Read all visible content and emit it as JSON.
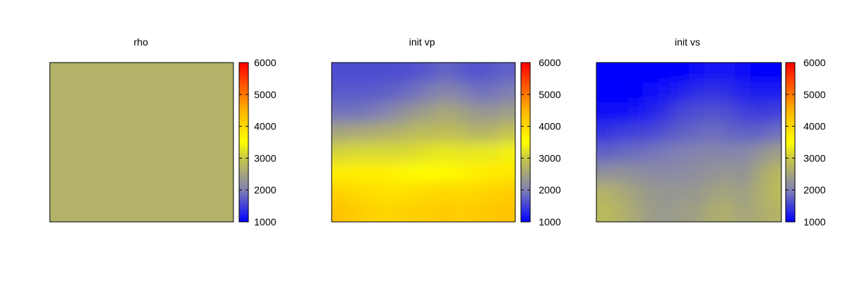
{
  "chart_data": [
    {
      "type": "heatmap",
      "title": "rho",
      "colorbar": {
        "ticks": [
          "6000",
          "5000",
          "4000",
          "3000",
          "2000",
          "1000"
        ],
        "range": [
          1000,
          6000
        ]
      },
      "field": {
        "rows": 8,
        "cols": 12,
        "values": [
          [
            2700,
            2700,
            2700,
            2700,
            2700,
            2700,
            2700,
            2700,
            2700,
            2700,
            2700,
            2700
          ],
          [
            2700,
            2700,
            2700,
            2700,
            2700,
            2700,
            2700,
            2700,
            2700,
            2700,
            2700,
            2700
          ],
          [
            2700,
            2700,
            2700,
            2700,
            2700,
            2700,
            2700,
            2700,
            2700,
            2700,
            2700,
            2700
          ],
          [
            2700,
            2700,
            2700,
            2700,
            2700,
            2700,
            2700,
            2700,
            2700,
            2700,
            2700,
            2700
          ],
          [
            2700,
            2700,
            2700,
            2700,
            2700,
            2700,
            2700,
            2700,
            2700,
            2700,
            2700,
            2700
          ],
          [
            2700,
            2700,
            2700,
            2700,
            2700,
            2700,
            2700,
            2700,
            2700,
            2700,
            2700,
            2700
          ],
          [
            2700,
            2700,
            2700,
            2700,
            2700,
            2700,
            2700,
            2700,
            2700,
            2700,
            2700,
            2700
          ],
          [
            2700,
            2700,
            2700,
            2700,
            2700,
            2700,
            2700,
            2700,
            2700,
            2700,
            2700,
            2700
          ]
        ]
      }
    },
    {
      "type": "heatmap",
      "title": "init vp",
      "colorbar": {
        "ticks": [
          "6000",
          "5000",
          "4000",
          "3000",
          "2000",
          "1000"
        ],
        "range": [
          1000,
          6000
        ]
      },
      "field": {
        "rows": 8,
        "cols": 12,
        "values": [
          [
            1600,
            1600,
            1600,
            1600,
            1620,
            1650,
            1700,
            1800,
            1700,
            1650,
            1700,
            1750
          ],
          [
            1700,
            1700,
            1700,
            1750,
            1800,
            1900,
            2000,
            2100,
            2000,
            1900,
            1900,
            2000
          ],
          [
            1900,
            1900,
            1950,
            2050,
            2200,
            2350,
            2450,
            2550,
            2450,
            2350,
            2300,
            2400
          ],
          [
            2500,
            2550,
            2600,
            2650,
            2700,
            2800,
            2800,
            2850,
            2800,
            2700,
            2750,
            2900
          ],
          [
            3100,
            3150,
            3150,
            3150,
            3150,
            3200,
            3250,
            3300,
            3250,
            3300,
            3300,
            3400
          ],
          [
            3700,
            3700,
            3700,
            3700,
            3600,
            3550,
            3550,
            3550,
            3600,
            3700,
            3750,
            3800
          ],
          [
            4100,
            4000,
            3950,
            3900,
            3900,
            3950,
            4000,
            4050,
            4000,
            4050,
            4100,
            4150
          ],
          [
            4300,
            4200,
            4100,
            4050,
            4100,
            4150,
            4150,
            4200,
            4150,
            4200,
            4250,
            4300
          ]
        ]
      }
    },
    {
      "type": "heatmap",
      "title": "init vs",
      "colorbar": {
        "ticks": [
          "6000",
          "5000",
          "4000",
          "3000",
          "2000",
          "1000"
        ],
        "range": [
          1000,
          6000
        ]
      },
      "field": {
        "rows": 8,
        "cols": 12,
        "values": [
          [
            1000,
            1000,
            1000,
            1000,
            1000,
            1050,
            1100,
            1150,
            1150,
            1100,
            1050,
            1050
          ],
          [
            1000,
            1000,
            1050,
            1100,
            1150,
            1250,
            1350,
            1400,
            1350,
            1250,
            1200,
            1200
          ],
          [
            1100,
            1100,
            1150,
            1250,
            1400,
            1550,
            1600,
            1650,
            1600,
            1500,
            1450,
            1500
          ],
          [
            1400,
            1450,
            1500,
            1550,
            1650,
            1750,
            1800,
            1850,
            1800,
            1750,
            1750,
            1850
          ],
          [
            1750,
            1800,
            1850,
            1900,
            1950,
            2000,
            2050,
            2100,
            2050,
            2100,
            2200,
            2400
          ],
          [
            2200,
            2250,
            2200,
            2150,
            2150,
            2150,
            2200,
            2250,
            2300,
            2250,
            2500,
            2750
          ],
          [
            2700,
            2600,
            2450,
            2350,
            2300,
            2300,
            2350,
            2450,
            2500,
            2400,
            2600,
            2800
          ],
          [
            2800,
            2700,
            2550,
            2400,
            2350,
            2400,
            2450,
            2600,
            2650,
            2500,
            2600,
            2700
          ]
        ]
      }
    }
  ]
}
